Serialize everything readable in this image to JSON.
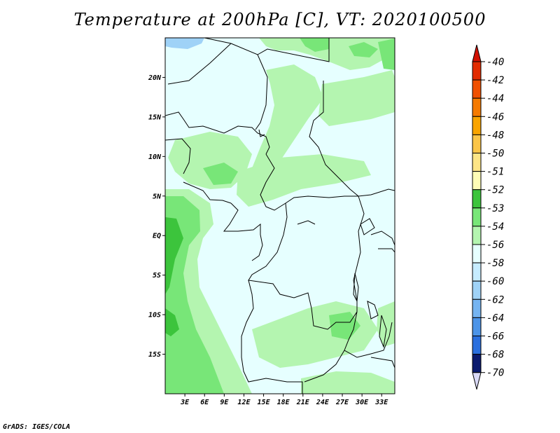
{
  "title": "Temperature at 200hPa [C], VT: 2020100500",
  "credit": "GrADS: IGES/COLA",
  "map": {
    "lon_range": [
      0,
      35
    ],
    "lat_range": [
      -20,
      25
    ],
    "lat_ticks": [
      {
        "value": 20,
        "label": "20N"
      },
      {
        "value": 15,
        "label": "15N"
      },
      {
        "value": 10,
        "label": "10N"
      },
      {
        "value": 5,
        "label": "5N"
      },
      {
        "value": 0,
        "label": "EQ"
      },
      {
        "value": -5,
        "label": "5S"
      },
      {
        "value": -10,
        "label": "10S"
      },
      {
        "value": -15,
        "label": "15S"
      }
    ],
    "lon_ticks": [
      {
        "value": 3,
        "label": "3E"
      },
      {
        "value": 6,
        "label": "6E"
      },
      {
        "value": 9,
        "label": "9E"
      },
      {
        "value": 12,
        "label": "12E"
      },
      {
        "value": 15,
        "label": "15E"
      },
      {
        "value": 18,
        "label": "18E"
      },
      {
        "value": 21,
        "label": "21E"
      },
      {
        "value": 24,
        "label": "24E"
      },
      {
        "value": 27,
        "label": "27E"
      },
      {
        "value": 30,
        "label": "30E"
      },
      {
        "value": 33,
        "label": "33E"
      }
    ],
    "field_background": "#e6ffff"
  },
  "colorbar": {
    "levels": [
      {
        "label": "-40",
        "color": "#e22b00"
      },
      {
        "label": "-42",
        "color": "#f05000"
      },
      {
        "label": "-44",
        "color": "#f57a00"
      },
      {
        "label": "-46",
        "color": "#f9a400"
      },
      {
        "label": "-48",
        "color": "#fbc548"
      },
      {
        "label": "-50",
        "color": "#fde586"
      },
      {
        "label": "-51",
        "color": "#fefcb6"
      },
      {
        "label": "-52",
        "color": "#3cc43c"
      },
      {
        "label": "-53",
        "color": "#78e678"
      },
      {
        "label": "-54",
        "color": "#b4f5b0"
      },
      {
        "label": "-56",
        "color": "#e6ffff"
      },
      {
        "label": "-58",
        "color": "#c6ecff"
      },
      {
        "label": "-60",
        "color": "#9fd2f7"
      },
      {
        "label": "-62",
        "color": "#75b4f1"
      },
      {
        "label": "-64",
        "color": "#4c94e8"
      },
      {
        "label": "-66",
        "color": "#2a6fde"
      },
      {
        "label": "-68",
        "color": "#1b4fc6"
      },
      {
        "label": "-70",
        "color": "#1234a0"
      }
    ],
    "top_cap_color": "#d11000",
    "bottom_cap_color": "#d9d9f6",
    "last_box_color": "#0a1a6e"
  }
}
